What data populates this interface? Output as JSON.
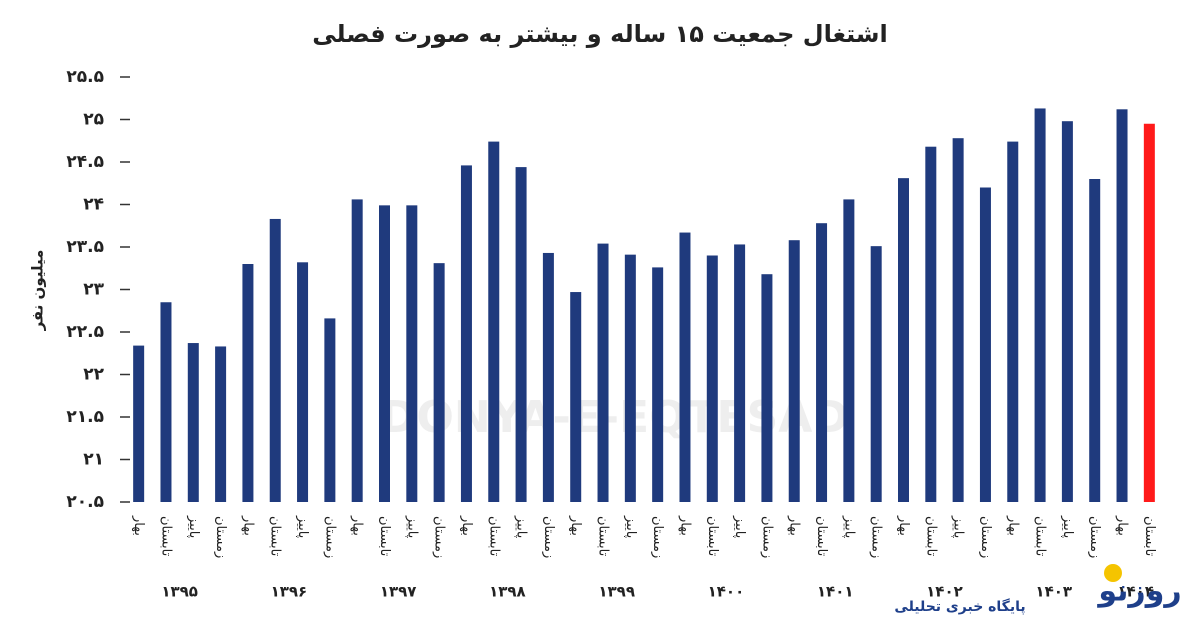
{
  "chart_data": {
    "type": "bar",
    "title": "اشتغال جمعیت ۱۵ ساله و بیشتر به صورت فصلی",
    "ylabel": "میلیون نفر",
    "categories": [
      "بهار",
      "تابستان",
      "پاییز",
      "زمستان",
      "بهار",
      "تابستان",
      "پاییز",
      "زمستان",
      "بهار",
      "تابستان",
      "پاییز",
      "زمستان",
      "بهار",
      "تابستان",
      "پاییز",
      "زمستان",
      "بهار",
      "تابستان",
      "پاییز",
      "زمستان",
      "بهار",
      "تابستان",
      "پاییز",
      "زمستان",
      "بهار",
      "تابستان",
      "پاییز",
      "زمستان",
      "بهار",
      "تابستان",
      "پاییز",
      "زمستان",
      "بهار",
      "تابستان",
      "پاییز",
      "زمستان",
      "بهار",
      "تابستان"
    ],
    "year_labels": [
      "۱۳۹۵",
      "۱۳۹۶",
      "۱۳۹۷",
      "۱۳۹۸",
      "۱۳۹۹",
      "۱۴۰۰",
      "۱۴۰۱",
      "۱۴۰۲",
      "۱۴۰۳",
      "۱۴۰۴"
    ],
    "values": [
      22.34,
      22.85,
      22.37,
      22.33,
      23.3,
      23.83,
      23.32,
      22.66,
      24.06,
      23.99,
      23.99,
      23.31,
      24.46,
      24.74,
      24.44,
      23.43,
      22.97,
      23.54,
      23.41,
      23.26,
      23.67,
      23.4,
      23.53,
      23.18,
      23.58,
      23.78,
      24.06,
      23.51,
      24.31,
      24.68,
      24.78,
      24.2,
      24.74,
      25.13,
      24.98,
      24.3,
      25.12,
      24.95
    ],
    "colors": [
      "#1f3a7d",
      "#1f3a7d",
      "#1f3a7d",
      "#1f3a7d",
      "#1f3a7d",
      "#1f3a7d",
      "#1f3a7d",
      "#1f3a7d",
      "#1f3a7d",
      "#1f3a7d",
      "#1f3a7d",
      "#1f3a7d",
      "#1f3a7d",
      "#1f3a7d",
      "#1f3a7d",
      "#1f3a7d",
      "#1f3a7d",
      "#1f3a7d",
      "#1f3a7d",
      "#1f3a7d",
      "#1f3a7d",
      "#1f3a7d",
      "#1f3a7d",
      "#1f3a7d",
      "#1f3a7d",
      "#1f3a7d",
      "#1f3a7d",
      "#1f3a7d",
      "#1f3a7d",
      "#1f3a7d",
      "#1f3a7d",
      "#1f3a7d",
      "#1f3a7d",
      "#1f3a7d",
      "#1f3a7d",
      "#1f3a7d",
      "#1f3a7d",
      "#ff1a1a"
    ],
    "ylim": [
      20.5,
      25.5
    ],
    "yticks": [
      {
        "value": 20.5,
        "label": "۲۰.۵"
      },
      {
        "value": 21,
        "label": "۲۱"
      },
      {
        "value": 21.5,
        "label": "۲۱.۵"
      },
      {
        "value": 22,
        "label": "۲۲"
      },
      {
        "value": 22.5,
        "label": "۲۲.۵"
      },
      {
        "value": 23,
        "label": "۲۳"
      },
      {
        "value": 23.5,
        "label": "۲۳.۵"
      },
      {
        "value": 24,
        "label": "۲۴"
      },
      {
        "value": 24.5,
        "label": "۲۴.۵"
      },
      {
        "value": 25,
        "label": "۲۵"
      },
      {
        "value": 25.5,
        "label": "۲۵.۵"
      }
    ],
    "watermark": "DONYA-E-EQTESAD",
    "logo": "روزنو",
    "logo_caption": "پایگاه خبری تحلیلی"
  }
}
